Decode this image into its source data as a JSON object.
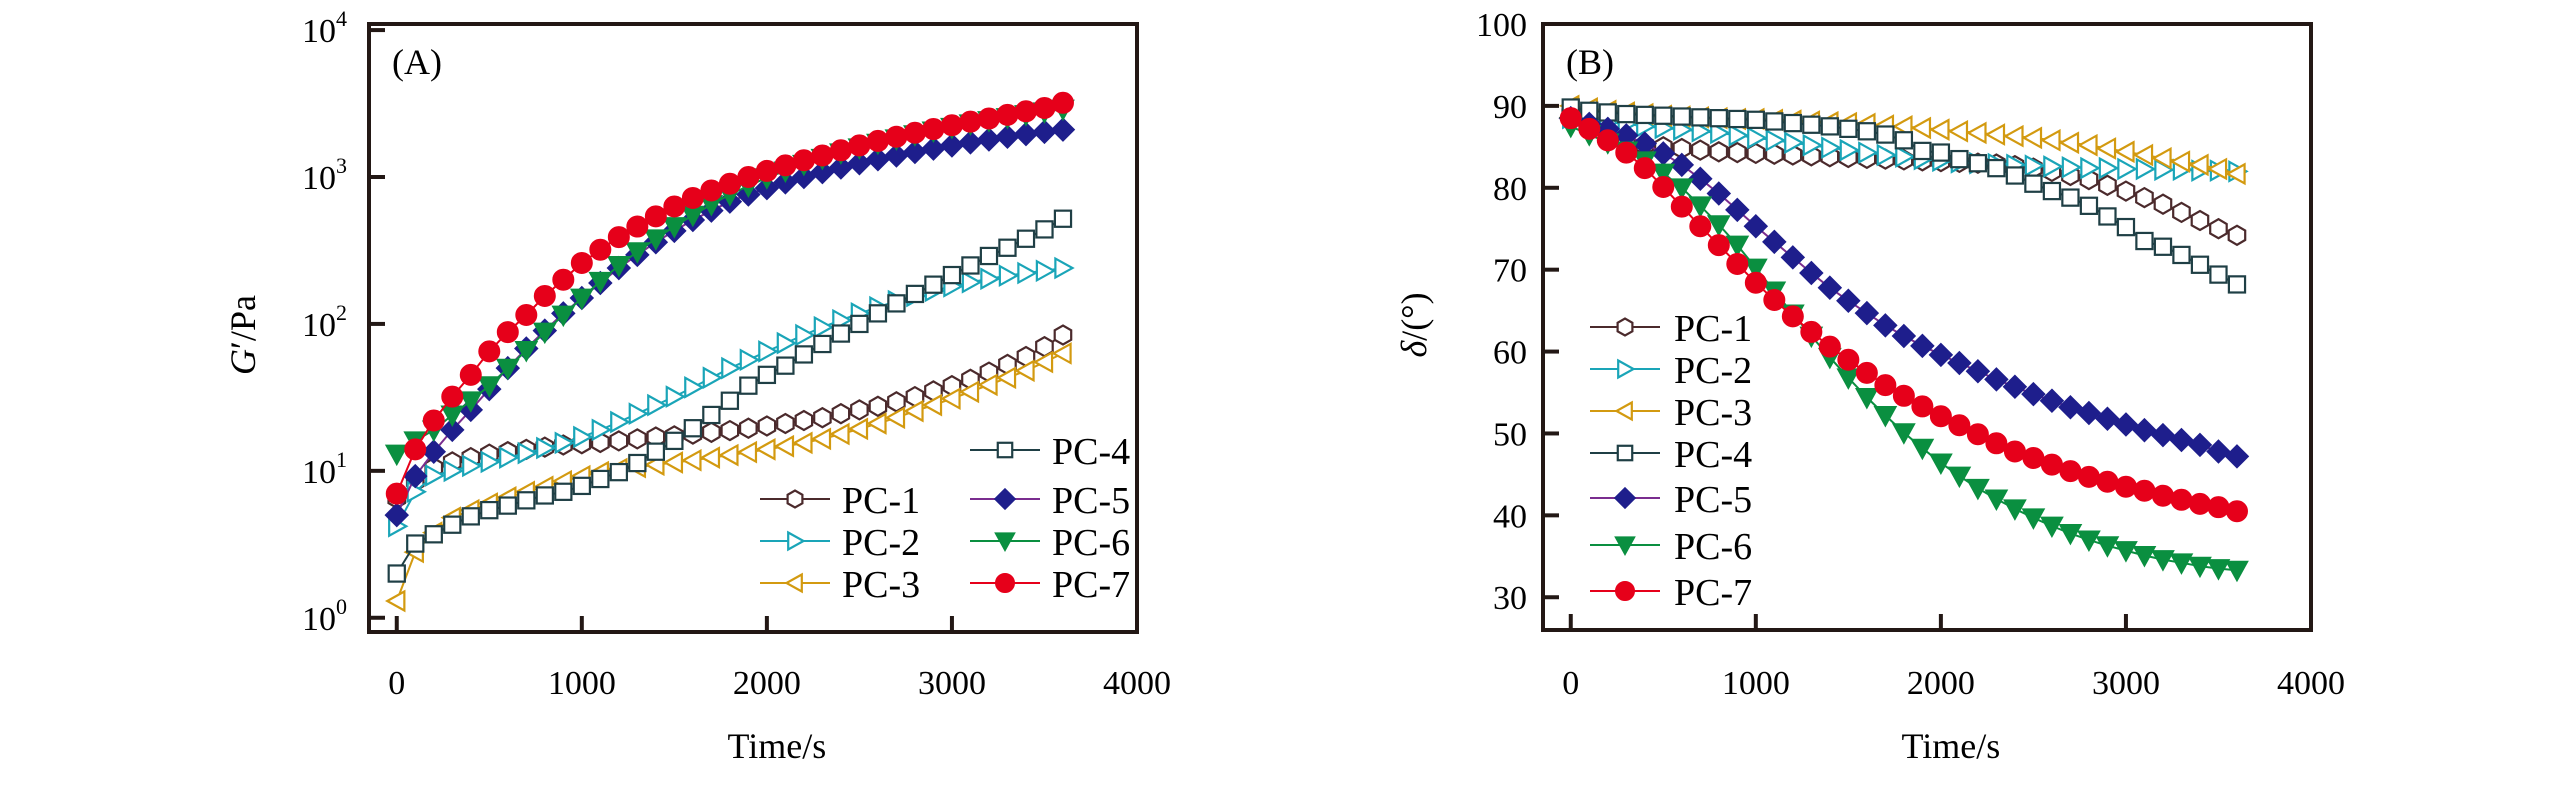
{
  "chart_data": [
    {
      "id": "A",
      "type": "line",
      "panel_label": "(A)",
      "title": "",
      "xlabel": "Time/s",
      "ylabel_italic": "G",
      "ylabel_rest": "′/Pa",
      "yscale": "log",
      "xlim": [
        -150,
        4000
      ],
      "ylim": [
        0.8,
        11000
      ],
      "xticks": [
        0,
        1000,
        2000,
        3000,
        4000
      ],
      "xtick_labels": [
        "0",
        "1000",
        "2000",
        "3000",
        "4000"
      ],
      "yticks": [
        1,
        10,
        100,
        1000,
        10000
      ],
      "ytick_labels": [
        {
          "base": "10",
          "exp": "0"
        },
        {
          "base": "10",
          "exp": "1"
        },
        {
          "base": "10",
          "exp": "2"
        },
        {
          "base": "10",
          "exp": "3"
        },
        {
          "base": "10",
          "exp": "4"
        }
      ],
      "grid": false,
      "legend_position": "bottom-right",
      "legend_columns": 2,
      "x": [
        0,
        100,
        200,
        300,
        400,
        500,
        600,
        700,
        800,
        900,
        1000,
        1100,
        1200,
        1300,
        1400,
        1500,
        1600,
        1700,
        1800,
        1900,
        2000,
        2100,
        2200,
        2300,
        2400,
        2500,
        2600,
        2700,
        2800,
        2900,
        3000,
        3100,
        3200,
        3300,
        3400,
        3500,
        3600
      ],
      "series": [
        {
          "name": "PC-1",
          "color": "#4b2a2c",
          "marker": "hexagon-open",
          "values": [
            6.5,
            8.5,
            10.5,
            11.5,
            12.3,
            13,
            13.5,
            14,
            14.5,
            15,
            15.3,
            15.6,
            16,
            16.5,
            17,
            17.3,
            17.8,
            18.3,
            18.8,
            19.5,
            20.2,
            21,
            22,
            23,
            24.5,
            26,
            27.5,
            29.5,
            32,
            35,
            38,
            42,
            47,
            53,
            60,
            70,
            84
          ]
        },
        {
          "name": "PC-2",
          "color": "#1aa5b8",
          "marker": "triangle-right-open",
          "values": [
            4.2,
            7.2,
            9.3,
            10,
            10.8,
            11.5,
            12.3,
            13.2,
            14.3,
            15.5,
            17,
            19,
            21.5,
            24.5,
            28,
            32,
            37,
            43,
            50,
            57,
            65,
            74,
            84,
            95,
            106,
            118,
            130,
            143,
            155,
            168,
            180,
            192,
            203,
            213,
            222,
            230,
            240
          ]
        },
        {
          "name": "PC-3",
          "color": "#d39a10",
          "marker": "triangle-left-open",
          "values": [
            1.3,
            2.8,
            3.8,
            4.8,
            5.4,
            6.0,
            6.6,
            7.2,
            7.8,
            8.5,
            9.2,
            9.8,
            10.3,
            10.6,
            11,
            11.4,
            11.8,
            12.3,
            12.8,
            13.4,
            14,
            14.7,
            15.5,
            16.5,
            17.8,
            19.3,
            21,
            23,
            25.5,
            28,
            31,
            34.5,
            38.5,
            43,
            48,
            55,
            63
          ]
        },
        {
          "name": "PC-4",
          "color": "#1f3f45",
          "marker": "square-open",
          "values": [
            2,
            3.2,
            3.7,
            4.3,
            4.9,
            5.4,
            5.8,
            6.3,
            6.8,
            7.2,
            7.9,
            8.8,
            9.8,
            11.3,
            13.5,
            16,
            19.5,
            24,
            30,
            38,
            45,
            52,
            62,
            73,
            86,
            100,
            118,
            138,
            160,
            185,
            215,
            250,
            290,
            330,
            380,
            440,
            520
          ]
        },
        {
          "name": "PC-5",
          "color": "#1e1e8c",
          "line_color": "#7a2d8f",
          "marker": "diamond-filled",
          "values": [
            5,
            9.2,
            13.5,
            19,
            26,
            36,
            50,
            68,
            90,
            118,
            150,
            190,
            240,
            295,
            360,
            430,
            510,
            590,
            680,
            760,
            840,
            920,
            1000,
            1080,
            1160,
            1240,
            1320,
            1400,
            1480,
            1560,
            1640,
            1720,
            1800,
            1880,
            1960,
            2030,
            2100
          ]
        },
        {
          "name": "PC-6",
          "color": "#0a8f40",
          "marker": "triangle-down-filled",
          "values": [
            13,
            16,
            19,
            24,
            30,
            38,
            50,
            66,
            88,
            115,
            150,
            195,
            250,
            310,
            380,
            460,
            550,
            650,
            760,
            870,
            990,
            1100,
            1220,
            1340,
            1460,
            1580,
            1700,
            1820,
            1940,
            2060,
            2180,
            2300,
            2420,
            2540,
            2660,
            2780,
            2900
          ]
        },
        {
          "name": "PC-7",
          "color": "#e6001a",
          "marker": "circle-filled",
          "values": [
            7,
            14,
            22,
            32,
            45,
            65,
            88,
            115,
            155,
            200,
            260,
            320,
            390,
            460,
            540,
            630,
            720,
            810,
            900,
            1000,
            1100,
            1200,
            1300,
            1400,
            1520,
            1640,
            1760,
            1880,
            2000,
            2120,
            2250,
            2380,
            2500,
            2650,
            2800,
            2950,
            3200
          ]
        }
      ],
      "legend_order": [
        [
          "",
          "PC-4"
        ],
        [
          "PC-1",
          "PC-5"
        ],
        [
          "PC-2",
          "PC-6"
        ],
        [
          "PC-3",
          "PC-7"
        ]
      ]
    },
    {
      "id": "B",
      "type": "line",
      "panel_label": "(B)",
      "title": "",
      "xlabel": "Time/s",
      "ylabel_italic": "δ",
      "ylabel_rest": "/(°)",
      "yscale": "linear",
      "xlim": [
        -150,
        4000
      ],
      "ylim": [
        26,
        100
      ],
      "xticks": [
        0,
        1000,
        2000,
        3000,
        4000
      ],
      "xtick_labels": [
        "0",
        "1000",
        "2000",
        "3000",
        "4000"
      ],
      "yticks": [
        30,
        40,
        50,
        60,
        70,
        80,
        90,
        100
      ],
      "ytick_labels": [
        "30",
        "40",
        "50",
        "60",
        "70",
        "80",
        "90",
        "100"
      ],
      "grid": false,
      "legend_position": "center-left",
      "legend_columns": 1,
      "x": [
        0,
        100,
        200,
        300,
        400,
        500,
        600,
        700,
        800,
        900,
        1000,
        1100,
        1200,
        1300,
        1400,
        1500,
        1600,
        1700,
        1800,
        1900,
        2000,
        2100,
        2200,
        2300,
        2400,
        2500,
        2600,
        2700,
        2800,
        2900,
        3000,
        3100,
        3200,
        3300,
        3400,
        3500,
        3600
      ],
      "series": [
        {
          "name": "PC-1",
          "color": "#4b2a2c",
          "marker": "hexagon-open",
          "values": [
            89,
            88,
            86.5,
            85.5,
            85.2,
            85,
            84.8,
            84.6,
            84.4,
            84.3,
            84.2,
            84.1,
            84,
            83.9,
            83.8,
            83.7,
            83.6,
            83.5,
            83.4,
            83.3,
            83.2,
            83.1,
            83,
            82.9,
            82.7,
            82.4,
            82,
            81.5,
            81,
            80.3,
            79.6,
            78.8,
            78,
            77,
            76,
            75,
            74.2
          ]
        },
        {
          "name": "PC-2",
          "color": "#1aa5b8",
          "marker": "triangle-right-open",
          "values": [
            88.5,
            88.3,
            88,
            87.8,
            87.5,
            87.3,
            87.1,
            86.9,
            86.7,
            86.4,
            86.1,
            85.8,
            85.5,
            85.2,
            84.9,
            84.6,
            84.3,
            84,
            83.8,
            83.5,
            83.3,
            83.1,
            83,
            82.9,
            82.8,
            82.7,
            82.6,
            82.5,
            82.4,
            82.4,
            82.3,
            82.3,
            82.2,
            82.2,
            82.1,
            82.1,
            82
          ]
        },
        {
          "name": "PC-3",
          "color": "#d39a10",
          "marker": "triangle-left-open",
          "values": [
            90,
            89.7,
            89.4,
            89.2,
            89,
            88.8,
            88.7,
            88.6,
            88.5,
            88.4,
            88.4,
            88.3,
            88.2,
            88.1,
            88,
            87.9,
            87.8,
            87.6,
            87.5,
            87.3,
            87.1,
            86.9,
            86.7,
            86.5,
            86.3,
            86.1,
            85.8,
            85.5,
            85.2,
            84.8,
            84.4,
            84,
            83.6,
            83.2,
            82.8,
            82.3,
            81.7
          ]
        },
        {
          "name": "PC-4",
          "color": "#1f3f45",
          "marker": "square-open",
          "values": [
            89.8,
            89.4,
            89.2,
            89,
            88.9,
            88.8,
            88.7,
            88.6,
            88.5,
            88.4,
            88.3,
            88.1,
            87.9,
            87.7,
            87.5,
            87.2,
            86.9,
            86.5,
            85.8,
            84.5,
            84.3,
            83.5,
            83,
            82.4,
            81.5,
            80.5,
            79.6,
            78.8,
            77.8,
            76.5,
            75.2,
            73.5,
            72.8,
            71.8,
            70.6,
            69.4,
            68.2
          ]
        },
        {
          "name": "PC-5",
          "color": "#1e1e8c",
          "line_color": "#7a2d8f",
          "marker": "diamond-filled",
          "values": [
            88.5,
            87.8,
            87.2,
            86.4,
            85.4,
            84.2,
            82.8,
            81.1,
            79.3,
            77.3,
            75.3,
            73.4,
            71.5,
            69.6,
            67.8,
            66.2,
            64.7,
            63.2,
            61.9,
            60.7,
            59.6,
            58.6,
            57.6,
            56.6,
            55.7,
            54.8,
            54,
            53.2,
            52.5,
            51.8,
            51.1,
            50.4,
            49.8,
            49.2,
            48.6,
            47.8,
            47.2
          ]
        },
        {
          "name": "PC-6",
          "color": "#0a8f40",
          "marker": "triangle-down-filled",
          "values": [
            87.5,
            86.5,
            85.5,
            84.5,
            83.3,
            81.8,
            80,
            77.8,
            75.5,
            73,
            70.2,
            67.4,
            64.6,
            61.9,
            59.3,
            56.8,
            54.4,
            52.2,
            50.1,
            48.2,
            46.4,
            44.8,
            43.3,
            42,
            40.8,
            39.7,
            38.7,
            37.8,
            37,
            36.3,
            35.7,
            35.1,
            34.6,
            34.2,
            33.8,
            33.5,
            33.3
          ]
        },
        {
          "name": "PC-7",
          "color": "#e6001a",
          "marker": "circle-filled",
          "values": [
            88.5,
            87.2,
            85.8,
            84.3,
            82.4,
            80.1,
            77.7,
            75.3,
            73,
            70.7,
            68.4,
            66.3,
            64.3,
            62.4,
            60.6,
            59,
            57.4,
            55.9,
            54.6,
            53.3,
            52.1,
            51,
            49.9,
            48.8,
            47.8,
            47,
            46.2,
            45.4,
            44.7,
            44.1,
            43.5,
            43,
            42.4,
            41.9,
            41.4,
            41,
            40.5
          ]
        }
      ],
      "legend_order": [
        [
          "PC-1"
        ],
        [
          "PC-2"
        ],
        [
          "PC-3"
        ],
        [
          "PC-4"
        ],
        [
          "PC-5"
        ],
        [
          "PC-6"
        ],
        [
          "PC-7"
        ]
      ]
    }
  ]
}
